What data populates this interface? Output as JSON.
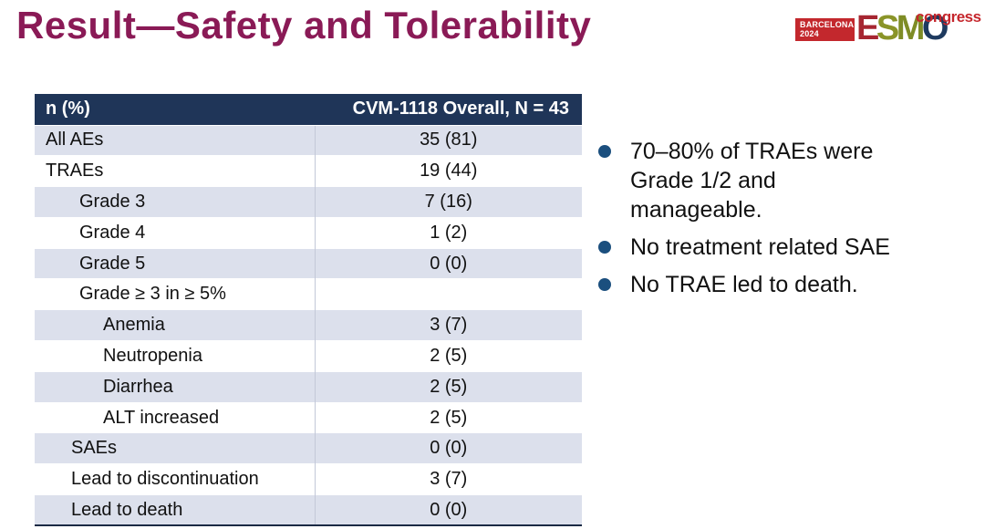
{
  "slide": {
    "title": "Result—Safety and Tolerability"
  },
  "logo": {
    "venue_line1": "BARCELONA",
    "venue_line2": "2024",
    "esmo_letters": [
      {
        "char": "E",
        "color": "#A62631"
      },
      {
        "char": "S",
        "color": "#8A9428"
      },
      {
        "char": "M",
        "color": "#7E8C25"
      },
      {
        "char": "O",
        "color": "#1E3A5F"
      }
    ],
    "suffix": "congress"
  },
  "table": {
    "header": {
      "col1": "n (%)",
      "col2": "CVM-1118 Overall, N = 43"
    },
    "rows": [
      {
        "label": "All AEs",
        "value": "35 (81)",
        "indent": 0
      },
      {
        "label": "TRAEs",
        "value": "19 (44)",
        "indent": 0
      },
      {
        "label": "Grade 3",
        "value": "7 (16)",
        "indent": 2
      },
      {
        "label": "Grade 4",
        "value": "1 (2)",
        "indent": 2
      },
      {
        "label": "Grade 5",
        "value": "0 (0)",
        "indent": 2
      },
      {
        "label": "Grade ≥ 3 in ≥ 5%",
        "value": "",
        "indent": 2
      },
      {
        "label": "Anemia",
        "value": "3 (7)",
        "indent": 3
      },
      {
        "label": "Neutropenia",
        "value": "2 (5)",
        "indent": 3
      },
      {
        "label": "Diarrhea",
        "value": "2 (5)",
        "indent": 3
      },
      {
        "label": "ALT increased",
        "value": "2 (5)",
        "indent": 3
      },
      {
        "label": "SAEs",
        "value": "0 (0)",
        "indent": 1
      },
      {
        "label": "Lead to discontinuation",
        "value": "3 (7)",
        "indent": 1
      },
      {
        "label": "Lead to death",
        "value": "0 (0)",
        "indent": 1
      }
    ]
  },
  "bullets": [
    "70–80% of TRAEs were Grade 1/2 and manageable.",
    "No treatment related SAE",
    "No TRAE led to death."
  ],
  "colors": {
    "title_accent": "#8A1A56",
    "table_header_bg": "#1F3558",
    "table_shaded_row": "#DCE0EC",
    "table_bottom_border": "#1B2A45",
    "bullet_dot": "#1B4F7E",
    "logo_red": "#C3282D",
    "logo_congress_red": "#C5262C"
  }
}
